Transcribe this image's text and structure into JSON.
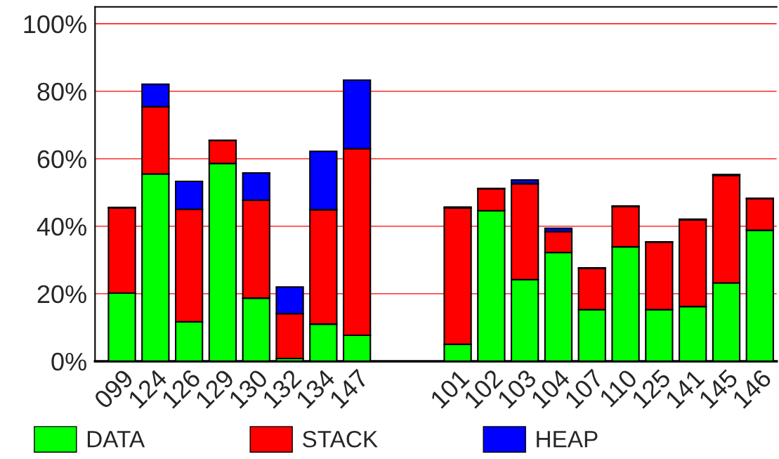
{
  "chart_data": {
    "type": "bar",
    "stacked": true,
    "categories": [
      "099",
      "124",
      "126",
      "129",
      "130",
      "132",
      "134",
      "147",
      null,
      null,
      "101",
      "102",
      "103",
      "104",
      "107",
      "110",
      "125",
      "141",
      "145",
      "146"
    ],
    "series": [
      {
        "name": "DATA",
        "color": "#00ff00",
        "values": [
          20.2,
          55.5,
          11.7,
          58.6,
          18.7,
          0.8,
          11.0,
          7.7,
          null,
          null,
          5.0,
          44.6,
          24.2,
          32.2,
          15.3,
          33.9,
          15.3,
          16.2,
          23.2,
          38.8
        ]
      },
      {
        "name": "STACK",
        "color": "#ff0000",
        "values": [
          25.2,
          19.9,
          33.3,
          6.8,
          29.0,
          13.3,
          33.9,
          55.3,
          null,
          null,
          40.4,
          6.5,
          28.4,
          6.2,
          12.2,
          11.9,
          20.0,
          25.7,
          31.9,
          9.4
        ]
      },
      {
        "name": "HEAP",
        "color": "#0000ff",
        "values": [
          0.2,
          6.7,
          8.3,
          0.1,
          8.1,
          7.9,
          17.3,
          20.3,
          null,
          null,
          0.3,
          0.1,
          1.1,
          1.0,
          0.2,
          0.2,
          0.1,
          0.2,
          0.2,
          0.1
        ]
      }
    ],
    "ylim": [
      0,
      105
    ],
    "yticks": [
      {
        "value": 0,
        "label": "0%"
      },
      {
        "value": 20,
        "label": "20%"
      },
      {
        "value": 40,
        "label": "40%"
      },
      {
        "value": 60,
        "label": "60%"
      },
      {
        "value": 80,
        "label": "80%"
      },
      {
        "value": 100,
        "label": "100%"
      }
    ],
    "grid": "y",
    "legend": "bottom"
  }
}
